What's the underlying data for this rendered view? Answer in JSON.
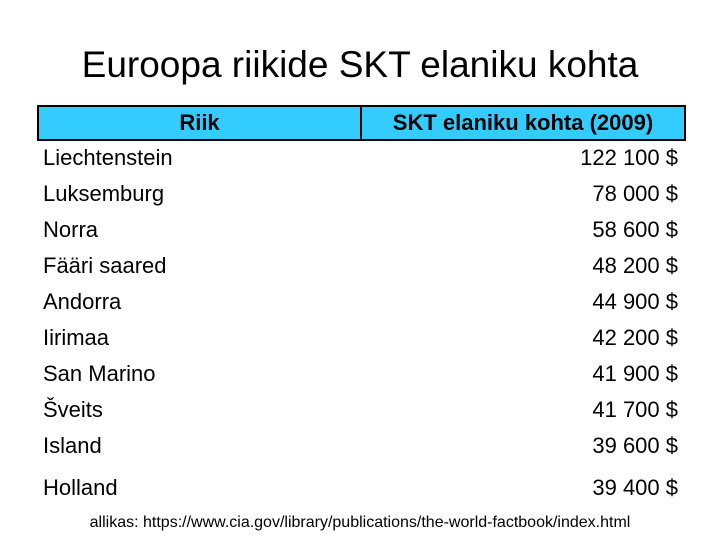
{
  "title": "Euroopa riikide SKT elaniku kohta",
  "table": {
    "header": [
      "Riik",
      "SKT elaniku kohta (2009)"
    ],
    "rows": [
      [
        "Liechtenstein",
        "122 100 $"
      ],
      [
        "Luksemburg",
        "78 000 $"
      ],
      [
        "Norra",
        "58 600 $"
      ],
      [
        "Fääri saared",
        "48 200 $"
      ],
      [
        "Andorra",
        "44 900 $"
      ],
      [
        "Iirimaa",
        "42 200 $"
      ],
      [
        "San Marino",
        "41 900 $"
      ],
      [
        "Šveits",
        "41 700 $"
      ],
      [
        "Island",
        "39 600 $"
      ],
      [
        "Holland",
        "39 400 $"
      ]
    ]
  },
  "source": "allikas: https://www.cia.gov/library/publications/the-world-factbook/index.html"
}
